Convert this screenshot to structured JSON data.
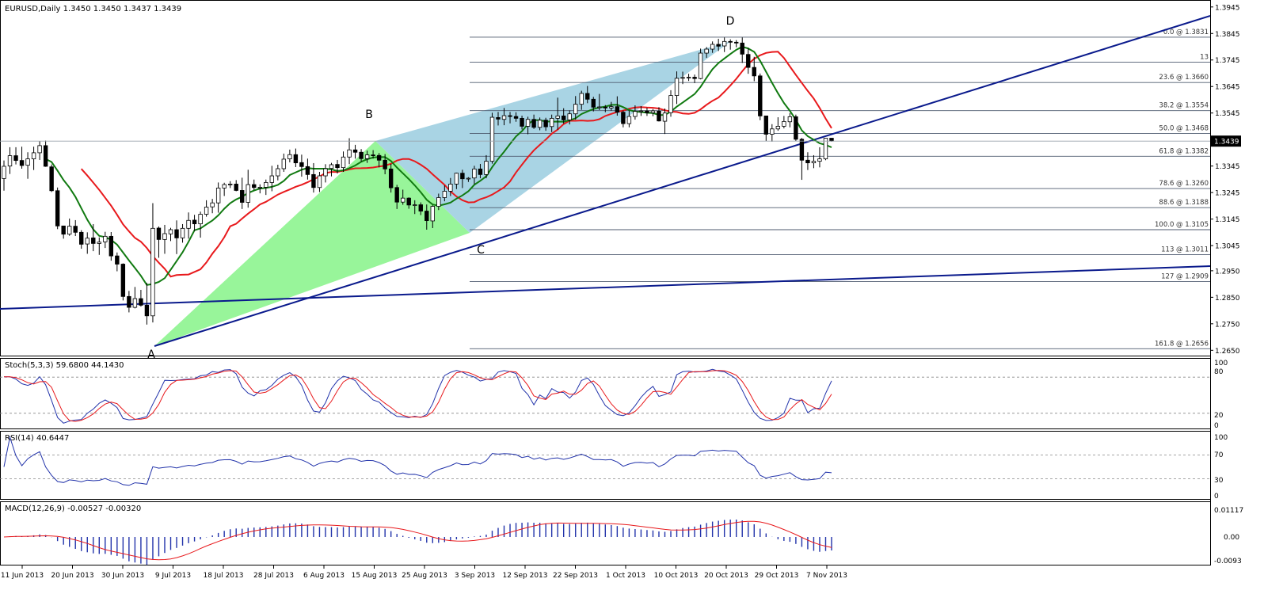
{
  "header": {
    "symbol_line": "EURUSD,Daily  1.3450 1.3450 1.3437 1.3439"
  },
  "panels": {
    "stoch": {
      "label": "Stoch(5,3,3) 59.6800 44.1430",
      "levels": [
        "100",
        "80",
        "20",
        "0"
      ]
    },
    "rsi": {
      "label": "RSI(14) 40.6447",
      "levels": [
        "100",
        "70",
        "30",
        "0"
      ]
    },
    "macd": {
      "label": "MACD(12,26,9) -0.00527 -0.00320",
      "levels": [
        "0.01117",
        "0.00",
        "-0.0093"
      ]
    }
  },
  "price_axis": {
    "ticks": [
      "1.3945",
      "1.3845",
      "1.3745",
      "1.3645",
      "1.3545",
      "1.3445",
      "1.3345",
      "1.3245",
      "1.3145",
      "1.3045",
      "1.2950",
      "1.2850",
      "1.2750",
      "1.2650"
    ],
    "current": "1.3439"
  },
  "date_labels": [
    "11 Jun 2013",
    "20 Jun 2013",
    "30 Jun 2013",
    "9 Jul 2013",
    "18 Jul 2013",
    "28 Jul 2013",
    "6 Aug 2013",
    "15 Aug 2013",
    "25 Aug 2013",
    "3 Sep 2013",
    "12 Sep 2013",
    "22 Sep 2013",
    "1 Oct 2013",
    "10 Oct 2013",
    "20 Oct 2013",
    "29 Oct 2013",
    "7 Nov 2013"
  ],
  "pattern_points": [
    "A",
    "B",
    "C",
    "D"
  ],
  "fib_levels": [
    {
      "label": "0.0 @ 1.3831",
      "price": 1.3831
    },
    {
      "label": "13",
      "price": 1.3737
    },
    {
      "label": "23.6 @ 1.3660",
      "price": 1.366
    },
    {
      "label": "38.2 @ 1.3554",
      "price": 1.3554
    },
    {
      "label": "50.0 @ 1.3468",
      "price": 1.3468
    },
    {
      "label": "61.8 @ 1.3382",
      "price": 1.3382
    },
    {
      "label": "78.6 @ 1.3260",
      "price": 1.326
    },
    {
      "label": "88.6 @ 1.3188",
      "price": 1.3188
    },
    {
      "label": "100.0 @ 1.3105",
      "price": 1.3105
    },
    {
      "label": "113 @ 1.3011",
      "price": 1.3011
    },
    {
      "label": "127 @ 1.2909",
      "price": 1.2909
    },
    {
      "label": "161.8 @ 1.2656",
      "price": 1.2656
    }
  ],
  "colors": {
    "background": "#ffffff",
    "grid": "#000000",
    "trendline": "#0a1a8c",
    "pattern_xab": "#98f59a",
    "pattern_bcd": "#a9d4e4",
    "ma_fast": "#e8191c",
    "ma_slow": "#117a11",
    "fib": "#4d5a6e",
    "stoch_main": "#2233aa",
    "stoch_signal": "#e8191c",
    "macd_hist": "#2233aa",
    "macd_signal": "#e8191c"
  },
  "chart_data": {
    "type": "candlestick",
    "title": "EURUSD,Daily",
    "ylim": [
      1.2615,
      1.3975
    ],
    "candles": [
      [
        1.3298,
        1.3366,
        1.3252,
        1.3344
      ],
      [
        1.3345,
        1.3416,
        1.3315,
        1.3384
      ],
      [
        1.3384,
        1.3416,
        1.3351,
        1.3366
      ],
      [
        1.3366,
        1.3418,
        1.3335,
        1.3347
      ],
      [
        1.3348,
        1.3397,
        1.3297,
        1.3372
      ],
      [
        1.3372,
        1.3418,
        1.333,
        1.3395
      ],
      [
        1.3395,
        1.3438,
        1.3368,
        1.3422
      ],
      [
        1.3422,
        1.3441,
        1.3342,
        1.3344
      ],
      [
        1.3342,
        1.3351,
        1.3247,
        1.3252
      ],
      [
        1.3252,
        1.3264,
        1.3107,
        1.3119
      ],
      [
        1.3119,
        1.312,
        1.3071,
        1.3088
      ],
      [
        1.3088,
        1.3147,
        1.3082,
        1.3118
      ],
      [
        1.3118,
        1.3141,
        1.3081,
        1.3095
      ],
      [
        1.3095,
        1.3103,
        1.3033,
        1.305
      ],
      [
        1.3051,
        1.3095,
        1.3014,
        1.3073
      ],
      [
        1.3074,
        1.3126,
        1.3024,
        1.3053
      ],
      [
        1.3053,
        1.3076,
        1.301,
        1.3058
      ],
      [
        1.3059,
        1.3097,
        1.3036,
        1.308
      ],
      [
        1.308,
        1.3096,
        1.2988,
        1.3006
      ],
      [
        1.3006,
        1.3019,
        1.2948,
        1.2975
      ],
      [
        1.2975,
        1.2978,
        1.2838,
        1.2853
      ],
      [
        1.2853,
        1.2874,
        1.2793,
        1.2812
      ],
      [
        1.2812,
        1.2889,
        1.2808,
        1.2845
      ],
      [
        1.2845,
        1.2878,
        1.2815,
        1.282
      ],
      [
        1.282,
        1.2904,
        1.2747,
        1.278
      ],
      [
        1.278,
        1.3205,
        1.2755,
        1.311
      ],
      [
        1.3111,
        1.3117,
        1.2999,
        1.3068
      ],
      [
        1.3068,
        1.3123,
        1.3014,
        1.309
      ],
      [
        1.3089,
        1.3112,
        1.3062,
        1.3105
      ],
      [
        1.3105,
        1.314,
        1.3013,
        1.3074
      ],
      [
        1.3074,
        1.3126,
        1.3056,
        1.311
      ],
      [
        1.311,
        1.317,
        1.3071,
        1.314
      ],
      [
        1.3141,
        1.3161,
        1.31,
        1.3127
      ],
      [
        1.3127,
        1.3173,
        1.3075,
        1.3163
      ],
      [
        1.3163,
        1.3216,
        1.3154,
        1.319
      ],
      [
        1.3191,
        1.3221,
        1.3167,
        1.3206
      ],
      [
        1.3206,
        1.3283,
        1.3169,
        1.3262
      ],
      [
        1.3262,
        1.3282,
        1.3232,
        1.3275
      ],
      [
        1.3275,
        1.3288,
        1.3262,
        1.3277
      ],
      [
        1.3277,
        1.3292,
        1.325,
        1.3253
      ],
      [
        1.3253,
        1.3301,
        1.3183,
        1.3208
      ],
      [
        1.3208,
        1.3331,
        1.3188,
        1.3275
      ],
      [
        1.3275,
        1.3294,
        1.3254,
        1.3264
      ],
      [
        1.3264,
        1.3276,
        1.3242,
        1.3265
      ],
      [
        1.3265,
        1.3294,
        1.3236,
        1.3283
      ],
      [
        1.3283,
        1.3346,
        1.325,
        1.3308
      ],
      [
        1.3308,
        1.335,
        1.3291,
        1.3335
      ],
      [
        1.3335,
        1.3392,
        1.3323,
        1.3371
      ],
      [
        1.3372,
        1.3407,
        1.3359,
        1.3388
      ],
      [
        1.3388,
        1.3411,
        1.3341,
        1.3357
      ],
      [
        1.3358,
        1.3388,
        1.3305,
        1.3343
      ],
      [
        1.3343,
        1.3373,
        1.3294,
        1.3313
      ],
      [
        1.3313,
        1.3356,
        1.3245,
        1.3264
      ],
      [
        1.3264,
        1.3323,
        1.3247,
        1.3308
      ],
      [
        1.3308,
        1.3352,
        1.3283,
        1.3335
      ],
      [
        1.3336,
        1.3357,
        1.3306,
        1.335
      ],
      [
        1.3351,
        1.3368,
        1.3317,
        1.3339
      ],
      [
        1.3339,
        1.34,
        1.3323,
        1.3379
      ],
      [
        1.3379,
        1.345,
        1.3352,
        1.3406
      ],
      [
        1.3406,
        1.3425,
        1.3373,
        1.3397
      ],
      [
        1.3397,
        1.3409,
        1.3362,
        1.3373
      ],
      [
        1.3373,
        1.3403,
        1.3357,
        1.3387
      ],
      [
        1.3387,
        1.3405,
        1.3373,
        1.3385
      ],
      [
        1.3385,
        1.3394,
        1.334,
        1.3367
      ],
      [
        1.3367,
        1.339,
        1.3314,
        1.3334
      ],
      [
        1.3334,
        1.3353,
        1.3245,
        1.3263
      ],
      [
        1.3264,
        1.3274,
        1.3183,
        1.3209
      ],
      [
        1.3209,
        1.3256,
        1.3199,
        1.3224
      ],
      [
        1.3224,
        1.3227,
        1.3184,
        1.3198
      ],
      [
        1.3197,
        1.3216,
        1.3164,
        1.3199
      ],
      [
        1.3199,
        1.3208,
        1.316,
        1.3175
      ],
      [
        1.3175,
        1.32,
        1.3105,
        1.3139
      ],
      [
        1.3138,
        1.3197,
        1.3111,
        1.3193
      ],
      [
        1.3193,
        1.3241,
        1.3179,
        1.3226
      ],
      [
        1.3226,
        1.3272,
        1.3212,
        1.325
      ],
      [
        1.325,
        1.33,
        1.3232,
        1.3277
      ],
      [
        1.3277,
        1.332,
        1.3258,
        1.3318
      ],
      [
        1.3318,
        1.3331,
        1.3262,
        1.3297
      ],
      [
        1.3298,
        1.3303,
        1.3285,
        1.3299
      ],
      [
        1.33,
        1.3346,
        1.3277,
        1.3334
      ],
      [
        1.3334,
        1.3353,
        1.3299,
        1.3313
      ],
      [
        1.3313,
        1.3386,
        1.3299,
        1.3363
      ],
      [
        1.3363,
        1.3546,
        1.3354,
        1.3529
      ],
      [
        1.3528,
        1.3549,
        1.3498,
        1.3522
      ],
      [
        1.3521,
        1.3564,
        1.3499,
        1.3535
      ],
      [
        1.3535,
        1.3549,
        1.3506,
        1.3532
      ],
      [
        1.3532,
        1.3548,
        1.3512,
        1.3525
      ],
      [
        1.3525,
        1.3535,
        1.3483,
        1.3495
      ],
      [
        1.3495,
        1.3531,
        1.3465,
        1.3521
      ],
      [
        1.3521,
        1.3539,
        1.3485,
        1.3491
      ],
      [
        1.3491,
        1.3528,
        1.348,
        1.3518
      ],
      [
        1.3518,
        1.3527,
        1.3478,
        1.3493
      ],
      [
        1.3494,
        1.3539,
        1.3473,
        1.3525
      ],
      [
        1.3525,
        1.3603,
        1.3482,
        1.3534
      ],
      [
        1.3534,
        1.3563,
        1.3505,
        1.3519
      ],
      [
        1.3519,
        1.3555,
        1.3502,
        1.3542
      ],
      [
        1.3542,
        1.3609,
        1.352,
        1.3578
      ],
      [
        1.3578,
        1.3629,
        1.3557,
        1.3619
      ],
      [
        1.3619,
        1.3647,
        1.3582,
        1.3597
      ],
      [
        1.3597,
        1.3606,
        1.3551,
        1.3567
      ],
      [
        1.3568,
        1.3617,
        1.3556,
        1.3568
      ],
      [
        1.3567,
        1.3575,
        1.3548,
        1.3564
      ],
      [
        1.3564,
        1.3587,
        1.3554,
        1.3569
      ],
      [
        1.3569,
        1.3608,
        1.3535,
        1.3548
      ],
      [
        1.3548,
        1.3555,
        1.3491,
        1.3505
      ],
      [
        1.3505,
        1.3554,
        1.3491,
        1.3532
      ],
      [
        1.3532,
        1.3574,
        1.352,
        1.3551
      ],
      [
        1.3551,
        1.3571,
        1.3534,
        1.3553
      ],
      [
        1.3553,
        1.3565,
        1.3534,
        1.3546
      ],
      [
        1.3546,
        1.356,
        1.3533,
        1.3553
      ],
      [
        1.3552,
        1.3567,
        1.3513,
        1.3515
      ],
      [
        1.3514,
        1.3562,
        1.3466,
        1.3545
      ],
      [
        1.3546,
        1.3631,
        1.3531,
        1.3611
      ],
      [
        1.3611,
        1.3702,
        1.3579,
        1.3676
      ],
      [
        1.3676,
        1.3701,
        1.3654,
        1.3679
      ],
      [
        1.3679,
        1.3693,
        1.3666,
        1.368
      ],
      [
        1.368,
        1.369,
        1.3658,
        1.3675
      ],
      [
        1.3675,
        1.3788,
        1.3672,
        1.3771
      ],
      [
        1.3771,
        1.3794,
        1.3753,
        1.3786
      ],
      [
        1.3786,
        1.3815,
        1.3772,
        1.3804
      ],
      [
        1.3804,
        1.3825,
        1.3779,
        1.3797
      ],
      [
        1.3798,
        1.383,
        1.3775,
        1.3815
      ],
      [
        1.3815,
        1.3823,
        1.3784,
        1.3812
      ],
      [
        1.3812,
        1.382,
        1.3793,
        1.3809
      ],
      [
        1.3809,
        1.383,
        1.3734,
        1.3767
      ],
      [
        1.3766,
        1.3791,
        1.3693,
        1.3717
      ],
      [
        1.3717,
        1.3757,
        1.3665,
        1.3685
      ],
      [
        1.3685,
        1.3694,
        1.3518,
        1.3534
      ],
      [
        1.3534,
        1.3534,
        1.3439,
        1.3465
      ],
      [
        1.3465,
        1.3503,
        1.3437,
        1.3485
      ],
      [
        1.3485,
        1.3529,
        1.3478,
        1.3495
      ],
      [
        1.3495,
        1.3534,
        1.3487,
        1.3513
      ],
      [
        1.3512,
        1.3545,
        1.3491,
        1.3531
      ],
      [
        1.3531,
        1.3539,
        1.3438,
        1.3446
      ],
      [
        1.3446,
        1.3451,
        1.3293,
        1.3367
      ],
      [
        1.3367,
        1.3397,
        1.333,
        1.3357
      ],
      [
        1.3357,
        1.3386,
        1.3337,
        1.3363
      ],
      [
        1.3363,
        1.3416,
        1.334,
        1.3372
      ],
      [
        1.3372,
        1.3451,
        1.3367,
        1.345
      ],
      [
        1.345,
        1.345,
        1.3437,
        1.3439
      ]
    ]
  }
}
